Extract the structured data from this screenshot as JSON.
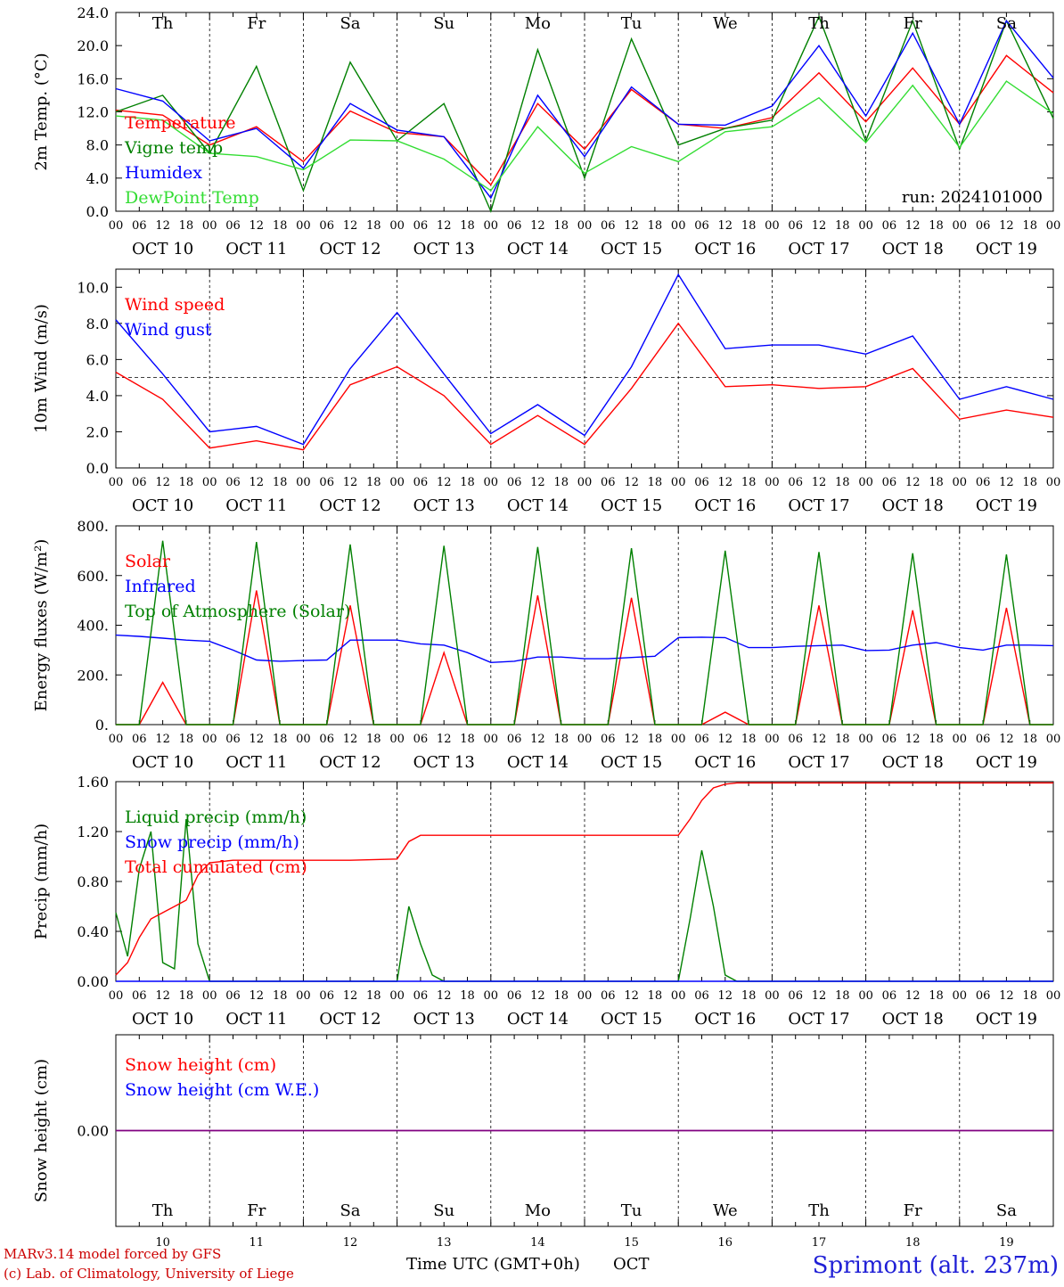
{
  "footer": {
    "model_line1": "MARv3.14 model forced by GFS",
    "model_line2": "(c) Lab. of Climatology, University of Liege",
    "xaxis_title": "Time UTC (GMT+0h)",
    "month_label": "OCT",
    "location": "Sprimont (alt. 237m)"
  },
  "colors": {
    "red": "#ff0000",
    "green": "#008000",
    "blue": "#0000ff",
    "lightgreen": "#33dd33",
    "purple": "#800080",
    "weekend": "#ff0000",
    "weekday": "#000000"
  },
  "chart_data": [
    {
      "type": "line",
      "ylabel": "2m Temp. (°C)",
      "ylim": [
        0,
        24
      ],
      "yticks": [
        "24.0",
        "20.0",
        "16.0",
        "12.0",
        "8.0",
        "4.0",
        "0.0"
      ],
      "run_label": "run: 2024101000",
      "x_hours": [
        0,
        12,
        24,
        36,
        48,
        60,
        72,
        84,
        96,
        108,
        120,
        132,
        144,
        156,
        168,
        180,
        192,
        204,
        216,
        228,
        240
      ],
      "series": [
        {
          "name": "Temperature",
          "color": "red",
          "values": [
            12.2,
            11.6,
            8.0,
            10.2,
            6.0,
            12.1,
            9.5,
            9.0,
            3.2,
            13.0,
            7.5,
            14.7,
            10.5,
            10.0,
            11.3,
            16.7,
            10.8,
            17.3,
            10.5,
            18.8,
            14.3
          ]
        },
        {
          "name": "Vigne temp",
          "color": "green",
          "values": [
            12.0,
            14.0,
            7.0,
            17.5,
            2.5,
            18.0,
            8.5,
            13.0,
            0.0,
            19.5,
            4.0,
            20.8,
            8.0,
            10.0,
            11.0,
            23.5,
            8.5,
            23.0,
            7.5,
            23.0,
            11.2
          ]
        },
        {
          "name": "Humidex",
          "color": "blue",
          "values": [
            14.8,
            13.3,
            8.5,
            10.0,
            5.2,
            13.0,
            9.8,
            9.0,
            1.6,
            14.0,
            6.6,
            15.0,
            10.5,
            10.4,
            12.7,
            20.0,
            11.5,
            21.5,
            10.5,
            23.0,
            16.1
          ]
        },
        {
          "name": "DewPoint Temp",
          "color": "lightgreen",
          "values": [
            11.5,
            11.0,
            7.0,
            6.6,
            5.0,
            8.6,
            8.5,
            6.3,
            2.5,
            10.2,
            4.6,
            7.8,
            6.0,
            9.6,
            10.2,
            13.7,
            8.3,
            15.2,
            7.7,
            15.7,
            11.8
          ]
        }
      ]
    },
    {
      "type": "line",
      "ylabel": "10m Wind (m/s)",
      "ylim": [
        0,
        11
      ],
      "yticks": [
        "10.0",
        "8.0",
        "6.0",
        "4.0",
        "2.0",
        "0.0"
      ],
      "ref_line": 5.0,
      "x_hours": [
        0,
        12,
        24,
        36,
        48,
        60,
        72,
        84,
        96,
        108,
        120,
        132,
        144,
        156,
        168,
        180,
        192,
        204,
        216,
        228,
        240
      ],
      "series": [
        {
          "name": "Wind speed",
          "color": "red",
          "values": [
            5.3,
            3.8,
            1.1,
            1.5,
            1.0,
            4.6,
            5.6,
            4.0,
            1.3,
            2.9,
            1.3,
            4.4,
            8.0,
            4.5,
            4.6,
            4.4,
            4.5,
            5.5,
            2.7,
            3.2,
            2.8
          ]
        },
        {
          "name": "Wind gust",
          "color": "blue",
          "values": [
            8.2,
            5.2,
            2.0,
            2.3,
            1.3,
            5.5,
            8.6,
            5.2,
            1.9,
            3.5,
            1.8,
            5.6,
            10.7,
            6.6,
            6.8,
            6.8,
            6.3,
            7.3,
            3.8,
            4.5,
            3.8
          ]
        }
      ]
    },
    {
      "type": "line",
      "ylabel": "Energy fluxes (W/m²)",
      "ylim": [
        0,
        800
      ],
      "yticks": [
        "800.",
        "600.",
        "400.",
        "200.",
        "0."
      ],
      "x_hours": [
        0,
        6,
        12,
        18,
        24,
        30,
        36,
        42,
        48,
        54,
        60,
        66,
        72,
        78,
        84,
        90,
        96,
        102,
        108,
        114,
        120,
        126,
        132,
        138,
        144,
        150,
        156,
        162,
        168,
        174,
        180,
        186,
        192,
        198,
        204,
        210,
        216,
        222,
        228,
        234,
        240
      ],
      "series": [
        {
          "name": "Solar",
          "color": "red",
          "values": [
            0,
            0,
            170,
            0,
            0,
            0,
            540,
            0,
            0,
            0,
            480,
            0,
            0,
            0,
            290,
            0,
            0,
            0,
            520,
            0,
            0,
            0,
            510,
            0,
            0,
            0,
            50,
            0,
            0,
            0,
            480,
            0,
            0,
            0,
            460,
            0,
            0,
            0,
            470,
            0,
            0
          ]
        },
        {
          "name": "Infrared",
          "color": "blue",
          "values": [
            360,
            355,
            348,
            340,
            335,
            300,
            260,
            255,
            258,
            260,
            340,
            340,
            340,
            325,
            320,
            290,
            250,
            255,
            272,
            272,
            265,
            265,
            270,
            275,
            350,
            352,
            350,
            310,
            310,
            315,
            318,
            320,
            298,
            300,
            320,
            330,
            310,
            300,
            320,
            320,
            318
          ]
        },
        {
          "name": "Top of Atmosphere (Solar)",
          "color": "green",
          "values": [
            0,
            0,
            740,
            0,
            0,
            0,
            735,
            0,
            0,
            0,
            725,
            0,
            0,
            0,
            720,
            0,
            0,
            0,
            715,
            0,
            0,
            0,
            710,
            0,
            0,
            0,
            700,
            0,
            0,
            0,
            695,
            0,
            0,
            0,
            690,
            0,
            0,
            0,
            685,
            0,
            0
          ]
        }
      ]
    },
    {
      "type": "line",
      "ylabel": "Precip (mm/h)",
      "ylim": [
        0,
        1.6
      ],
      "yticks": [
        "1.60",
        "1.20",
        "0.80",
        "0.40",
        "0.00"
      ],
      "x_hours": [
        0,
        3,
        6,
        9,
        12,
        15,
        18,
        21,
        24,
        30,
        36,
        48,
        60,
        72,
        75,
        78,
        81,
        84,
        96,
        120,
        144,
        147,
        150,
        153,
        156,
        159,
        162,
        168,
        192,
        216,
        240
      ],
      "series": [
        {
          "name": "Liquid precip (mm/h)",
          "color": "green",
          "values": [
            0.55,
            0.2,
            0.9,
            1.2,
            0.15,
            0.1,
            1.3,
            0.3,
            0.0,
            0.0,
            0.0,
            0.0,
            0.0,
            0.0,
            0.6,
            0.3,
            0.05,
            0.0,
            0.0,
            0.0,
            0.0,
            0.5,
            1.05,
            0.6,
            0.05,
            0.0,
            0.0,
            0.0,
            0.0,
            0.0,
            0.0
          ]
        },
        {
          "name": "Snow precip (mm/h)",
          "color": "blue",
          "values": [
            0,
            0,
            0,
            0,
            0,
            0,
            0,
            0,
            0,
            0,
            0,
            0,
            0,
            0,
            0,
            0,
            0,
            0,
            0,
            0,
            0,
            0,
            0,
            0,
            0,
            0,
            0,
            0,
            0,
            0,
            0
          ]
        },
        {
          "name": "Total cumulated (cm)",
          "color": "red",
          "values": [
            0.05,
            0.15,
            0.35,
            0.5,
            0.55,
            0.6,
            0.65,
            0.85,
            0.95,
            0.97,
            0.97,
            0.97,
            0.97,
            0.98,
            1.12,
            1.17,
            1.17,
            1.17,
            1.17,
            1.17,
            1.17,
            1.3,
            1.45,
            1.55,
            1.58,
            1.59,
            1.59,
            1.59,
            1.59,
            1.59,
            1.59
          ]
        }
      ]
    },
    {
      "type": "line",
      "ylabel": "Snow height (cm)",
      "ylim": [
        -1,
        1
      ],
      "yticks": [
        "0.00"
      ],
      "x_hours": [
        0,
        240
      ],
      "series": [
        {
          "name": "Snow height (cm)",
          "color": "red",
          "values": [
            0,
            0
          ]
        },
        {
          "name": "Snow height (cm W.E.)",
          "color": "blue",
          "values": [
            0,
            0
          ]
        }
      ]
    }
  ],
  "days": [
    {
      "abbr": "Th",
      "num": "10",
      "weekend": false
    },
    {
      "abbr": "Fr",
      "num": "11",
      "weekend": false
    },
    {
      "abbr": "Sa",
      "num": "12",
      "weekend": true
    },
    {
      "abbr": "Su",
      "num": "13",
      "weekend": true
    },
    {
      "abbr": "Mo",
      "num": "14",
      "weekend": false
    },
    {
      "abbr": "Tu",
      "num": "15",
      "weekend": false
    },
    {
      "abbr": "We",
      "num": "16",
      "weekend": false
    },
    {
      "abbr": "Th",
      "num": "17",
      "weekend": false
    },
    {
      "abbr": "Fr",
      "num": "18",
      "weekend": false
    },
    {
      "abbr": "Sa",
      "num": "19",
      "weekend": true
    }
  ],
  "date_labels": [
    "OCT 10",
    "OCT 11",
    "OCT 12",
    "OCT 13",
    "OCT 14",
    "OCT 15",
    "OCT 16",
    "OCT 17",
    "OCT 18",
    "OCT 19"
  ],
  "hour_ticks": [
    "00",
    "06",
    "12",
    "18"
  ]
}
